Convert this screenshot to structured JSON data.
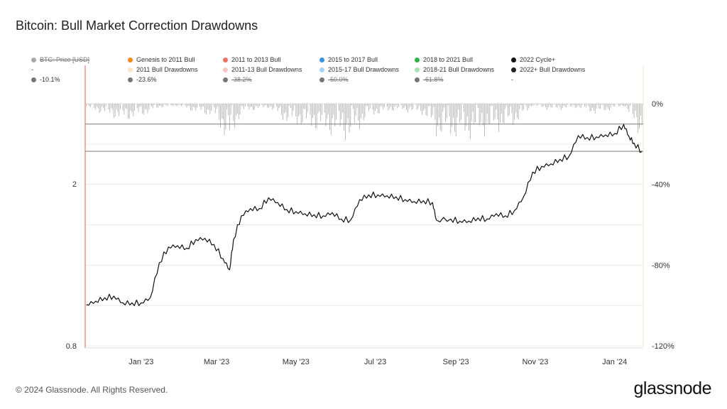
{
  "title": "Bitcoin: Bull Market Correction Drawdowns",
  "footer": "© 2024 Glassnode. All Rights Reserved.",
  "brand": "glassnode",
  "legend": [
    {
      "label": "BTC: Price [USD]",
      "color": "#aaaaaa",
      "strike": true
    },
    {
      "label": "Genesis to 2011 Bull",
      "color": "#f58a1f",
      "strike": false
    },
    {
      "label": "2011 to 2013 Bull",
      "color": "#f07060",
      "strike": false
    },
    {
      "label": "2015 to 2017 Bull",
      "color": "#3d8fe6",
      "strike": false
    },
    {
      "label": "2018 to 2021 Bull",
      "color": "#2eb04a",
      "strike": false
    },
    {
      "label": "2022 Cycle+",
      "color": "#111111",
      "strike": false
    },
    {
      "label": "-",
      "color": "",
      "strike": false
    },
    {
      "label": "2011 Bull Drawdowns",
      "color": "#fbe3c8",
      "strike": false
    },
    {
      "label": "2011-13 Bull Drawdowns",
      "color": "#f7c7bf",
      "strike": false
    },
    {
      "label": "2015-17 Bull Drawdowns",
      "color": "#a9d4f7",
      "strike": false
    },
    {
      "label": "2018-21 Bull Drawdowns",
      "color": "#a8e3b4",
      "strike": false
    },
    {
      "label": "2022+ Bull Drawdowns",
      "color": "#222222",
      "strike": false
    },
    {
      "label": "-10.1%",
      "color": "#777777",
      "strike": false
    },
    {
      "label": "-23.6%",
      "color": "#777777",
      "strike": false
    },
    {
      "label": "-38.2%",
      "color": "#777777",
      "strike": true
    },
    {
      "label": "-50.0%",
      "color": "#777777",
      "strike": true
    },
    {
      "label": "-61.8%",
      "color": "#777777",
      "strike": true
    },
    {
      "label": "-",
      "color": "",
      "strike": false
    }
  ],
  "chart_data": {
    "type": "line",
    "title": "Bitcoin: Bull Market Correction Drawdowns",
    "x_ticks": [
      "Jan '23",
      "Mar '23",
      "May '23",
      "Jul '23",
      "Sep '23",
      "Nov '23",
      "Jan '24"
    ],
    "y_left": {
      "scale": "log",
      "ticks": [
        "2",
        "0.8"
      ]
    },
    "y_right": {
      "ticks": [
        "0%",
        "-40%",
        "-80%",
        "-120%"
      ],
      "range": [
        -120,
        0
      ]
    },
    "reference_lines": [
      -10.1,
      -23.6
    ],
    "price_series": {
      "name": "2022 Cycle+",
      "color": "#111111",
      "points": [
        [
          "2022-11-21",
          1.01
        ],
        [
          "2022-11-28",
          1.03
        ],
        [
          "2022-12-05",
          1.05
        ],
        [
          "2022-12-12",
          1.06
        ],
        [
          "2022-12-19",
          1.02
        ],
        [
          "2022-12-26",
          1.02
        ],
        [
          "2023-01-02",
          1.02
        ],
        [
          "2023-01-09",
          1.05
        ],
        [
          "2023-01-16",
          1.28
        ],
        [
          "2023-01-23",
          1.4
        ],
        [
          "2023-01-30",
          1.41
        ],
        [
          "2023-02-06",
          1.39
        ],
        [
          "2023-02-13",
          1.46
        ],
        [
          "2023-02-20",
          1.47
        ],
        [
          "2023-02-27",
          1.42
        ],
        [
          "2023-03-06",
          1.31
        ],
        [
          "2023-03-11",
          1.23
        ],
        [
          "2023-03-14",
          1.46
        ],
        [
          "2023-03-20",
          1.67
        ],
        [
          "2023-03-27",
          1.74
        ],
        [
          "2023-04-03",
          1.74
        ],
        [
          "2023-04-10",
          1.85
        ],
        [
          "2023-04-17",
          1.8
        ],
        [
          "2023-04-24",
          1.73
        ],
        [
          "2023-05-01",
          1.71
        ],
        [
          "2023-05-08",
          1.69
        ],
        [
          "2023-05-15",
          1.68
        ],
        [
          "2023-05-22",
          1.67
        ],
        [
          "2023-05-29",
          1.7
        ],
        [
          "2023-06-05",
          1.64
        ],
        [
          "2023-06-12",
          1.63
        ],
        [
          "2023-06-19",
          1.83
        ],
        [
          "2023-06-26",
          1.88
        ],
        [
          "2023-07-03",
          1.88
        ],
        [
          "2023-07-10",
          1.87
        ],
        [
          "2023-07-17",
          1.86
        ],
        [
          "2023-07-24",
          1.83
        ],
        [
          "2023-07-31",
          1.81
        ],
        [
          "2023-08-07",
          1.82
        ],
        [
          "2023-08-14",
          1.8
        ],
        [
          "2023-08-17",
          1.63
        ],
        [
          "2023-08-28",
          1.64
        ],
        [
          "2023-09-04",
          1.62
        ],
        [
          "2023-09-11",
          1.62
        ],
        [
          "2023-09-18",
          1.65
        ],
        [
          "2023-09-25",
          1.64
        ],
        [
          "2023-10-02",
          1.69
        ],
        [
          "2023-10-09",
          1.67
        ],
        [
          "2023-10-16",
          1.72
        ],
        [
          "2023-10-23",
          1.86
        ],
        [
          "2023-10-30",
          2.14
        ],
        [
          "2023-11-06",
          2.21
        ],
        [
          "2023-11-13",
          2.24
        ],
        [
          "2023-11-20",
          2.3
        ],
        [
          "2023-11-27",
          2.34
        ],
        [
          "2023-12-04",
          2.63
        ],
        [
          "2023-12-11",
          2.6
        ],
        [
          "2023-12-18",
          2.61
        ],
        [
          "2023-12-25",
          2.64
        ],
        [
          "2024-01-01",
          2.66
        ],
        [
          "2024-01-08",
          2.8
        ],
        [
          "2024-01-12",
          2.62
        ],
        [
          "2024-01-16",
          2.52
        ],
        [
          "2024-01-22",
          2.4
        ]
      ]
    },
    "drawdown_series": {
      "name": "2022+ Bull Drawdowns",
      "color": "#222222",
      "points": [
        [
          "2022-11-21",
          -2
        ],
        [
          "2022-12-05",
          -5
        ],
        [
          "2022-12-19",
          -8
        ],
        [
          "2023-01-02",
          -6
        ],
        [
          "2023-01-16",
          -2
        ],
        [
          "2023-01-30",
          -1
        ],
        [
          "2023-02-13",
          -4
        ],
        [
          "2023-02-27",
          -6
        ],
        [
          "2023-03-11",
          -20
        ],
        [
          "2023-03-20",
          -4
        ],
        [
          "2023-04-10",
          -2
        ],
        [
          "2023-04-24",
          -9
        ],
        [
          "2023-05-08",
          -11
        ],
        [
          "2023-05-22",
          -13
        ],
        [
          "2023-06-12",
          -17
        ],
        [
          "2023-06-26",
          -6
        ],
        [
          "2023-07-17",
          -3
        ],
        [
          "2023-08-07",
          -5
        ],
        [
          "2023-08-17",
          -15
        ],
        [
          "2023-09-11",
          -16
        ],
        [
          "2023-10-02",
          -13
        ],
        [
          "2023-10-16",
          -10
        ],
        [
          "2023-10-30",
          -1
        ],
        [
          "2023-11-13",
          -3
        ],
        [
          "2023-12-04",
          -2
        ],
        [
          "2023-12-18",
          -5
        ],
        [
          "2024-01-08",
          -1
        ],
        [
          "2024-01-16",
          -10
        ],
        [
          "2024-01-22",
          -16
        ]
      ]
    }
  }
}
